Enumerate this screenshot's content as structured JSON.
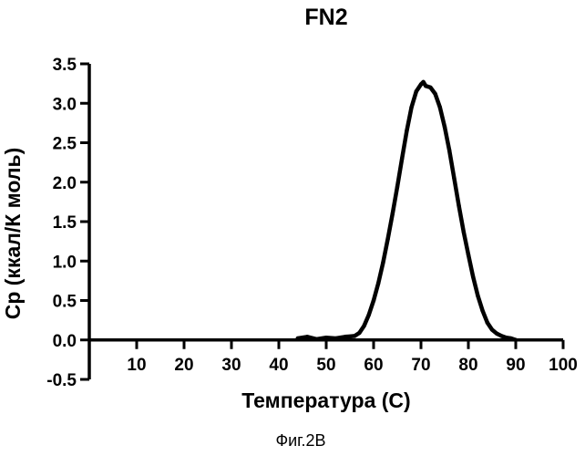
{
  "figure_caption": "Фиг.2В",
  "chart_data": {
    "type": "line",
    "title": "FN2",
    "xlabel": "Температура (С)",
    "ylabel": "Ср (ккал/К моль)",
    "xlim": [
      0,
      100
    ],
    "ylim": [
      -0.5,
      3.5
    ],
    "x_ticks": [
      10,
      20,
      30,
      40,
      50,
      60,
      70,
      80,
      90,
      100
    ],
    "y_ticks": [
      -0.5,
      0.0,
      0.5,
      1.0,
      1.5,
      2.0,
      2.5,
      3.0,
      3.5
    ],
    "x_tick_labels": [
      "10",
      "20",
      "30",
      "40",
      "50",
      "60",
      "70",
      "80",
      "90",
      "100"
    ],
    "y_tick_labels": [
      "-0.5",
      "0.0",
      "0.5",
      "1.0",
      "1.5",
      "2.0",
      "2.5",
      "3.0",
      "3.5"
    ],
    "grid": false,
    "legend": "none",
    "line_color": "#000000",
    "series": [
      {
        "x": [
          44,
          46,
          48,
          50,
          52,
          54,
          56,
          57,
          58,
          59,
          60,
          61,
          62,
          63,
          64,
          65,
          66,
          67,
          68,
          69,
          70,
          70.5,
          71,
          72,
          73,
          74,
          75,
          76,
          77,
          78,
          79,
          80,
          81,
          82,
          83,
          84,
          85,
          86,
          87,
          88,
          89,
          90
        ],
        "y": [
          0.02,
          0.04,
          0.01,
          0.03,
          0.02,
          0.04,
          0.05,
          0.09,
          0.18,
          0.32,
          0.5,
          0.72,
          0.98,
          1.28,
          1.6,
          1.94,
          2.3,
          2.65,
          2.95,
          3.15,
          3.24,
          3.27,
          3.22,
          3.2,
          3.12,
          2.95,
          2.7,
          2.4,
          2.05,
          1.7,
          1.37,
          1.08,
          0.8,
          0.56,
          0.37,
          0.22,
          0.13,
          0.08,
          0.05,
          0.03,
          0.02,
          0.0
        ]
      }
    ]
  }
}
